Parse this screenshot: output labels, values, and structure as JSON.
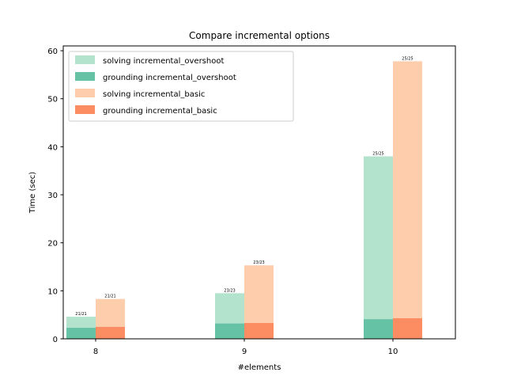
{
  "chart_data": {
    "type": "bar",
    "title": "Compare incremental options",
    "xlabel": "#elements",
    "ylabel": "Time (sec)",
    "categories": [
      "8",
      "9",
      "10"
    ],
    "ylim": [
      0,
      61
    ],
    "yticks": [
      0,
      10,
      20,
      30,
      40,
      50,
      60
    ],
    "stacked": true,
    "groups": [
      {
        "name": "incremental_overshoot",
        "grounding": [
          2.3,
          3.2,
          4.1
        ],
        "total": [
          4.6,
          9.5,
          38.0
        ],
        "labels": [
          "21/21",
          "23/23",
          "25/25"
        ],
        "solving_color": "#b3e2cd",
        "grounding_color": "#66c2a5"
      },
      {
        "name": "incremental_basic",
        "grounding": [
          2.5,
          3.3,
          4.3
        ],
        "total": [
          8.3,
          15.3,
          57.8
        ],
        "labels": [
          "21/21",
          "23/23",
          "25/25"
        ],
        "solving_color": "#fdcdac",
        "grounding_color": "#fc8d62"
      }
    ],
    "legend": {
      "placement": "top-left",
      "entries": [
        {
          "label": "solving incremental_overshoot",
          "color": "#b3e2cd"
        },
        {
          "label": "grounding incremental_overshoot",
          "color": "#66c2a5"
        },
        {
          "label": "solving incremental_basic",
          "color": "#fdcdac"
        },
        {
          "label": "grounding incremental_basic",
          "color": "#fc8d62"
        }
      ]
    }
  }
}
